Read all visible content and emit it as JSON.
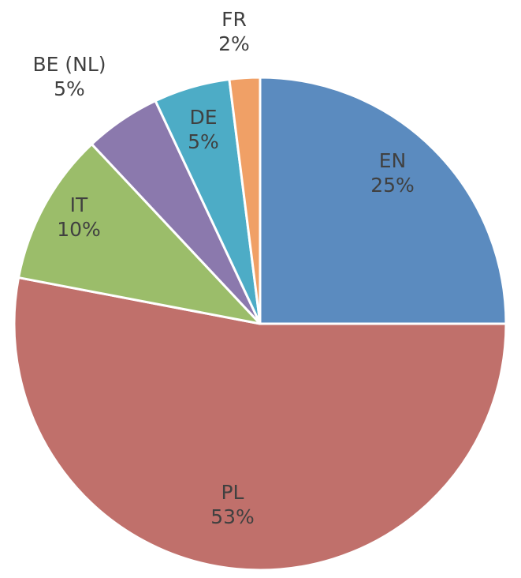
{
  "chart_data": {
    "type": "pie",
    "title": "",
    "start_angle_deg": 0,
    "direction": "clockwise",
    "legend": "none",
    "slices": [
      {
        "label": "EN",
        "value": 25,
        "display": "25%",
        "color": "#5b8bbf",
        "label_position": "inside"
      },
      {
        "label": "PL",
        "value": 53,
        "display": "53%",
        "color": "#c0706b",
        "label_position": "inside"
      },
      {
        "label": "IT",
        "value": 10,
        "display": "10%",
        "color": "#9bbd6a",
        "label_position": "inside"
      },
      {
        "label": "BE (NL)",
        "value": 5,
        "display": "5%",
        "color": "#8b79ad",
        "label_position": "outside"
      },
      {
        "label": "DE",
        "value": 5,
        "display": "5%",
        "color": "#4dacc6",
        "label_position": "inside"
      },
      {
        "label": "FR",
        "value": 2,
        "display": "2%",
        "color": "#f0a066",
        "label_position": "outside"
      }
    ]
  }
}
